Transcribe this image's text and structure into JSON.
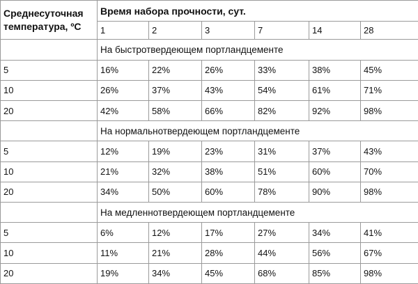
{
  "table": {
    "temp_header_line1": "Среднесуточная",
    "temp_header_line2": "температура, ºС",
    "time_header": "Время набора прочности, сут.",
    "days": [
      "1",
      "2",
      "3",
      "7",
      "14",
      "28"
    ],
    "sections": [
      {
        "title": "На быстротвердеющем портландцементе",
        "rows": [
          {
            "temp": "5",
            "values": [
              "16%",
              "22%",
              "26%",
              "33%",
              "38%",
              "45%"
            ]
          },
          {
            "temp": "10",
            "values": [
              "26%",
              "37%",
              "43%",
              "54%",
              "61%",
              "71%"
            ]
          },
          {
            "temp": "20",
            "values": [
              "42%",
              "58%",
              "66%",
              "82%",
              "92%",
              "98%"
            ]
          }
        ]
      },
      {
        "title": "На нормальнотвердеющем портландцементе",
        "rows": [
          {
            "temp": "5",
            "values": [
              "12%",
              "19%",
              "23%",
              "31%",
              "37%",
              "43%"
            ]
          },
          {
            "temp": "10",
            "values": [
              "21%",
              "32%",
              "38%",
              "51%",
              "60%",
              "70%"
            ]
          },
          {
            "temp": "20",
            "values": [
              "34%",
              "50%",
              "60%",
              "78%",
              "90%",
              "98%"
            ]
          }
        ]
      },
      {
        "title": "На медленнотвердеющем портландцементе",
        "rows": [
          {
            "temp": "5",
            "values": [
              "6%",
              "12%",
              "17%",
              "27%",
              "34%",
              "41%"
            ]
          },
          {
            "temp": "10",
            "values": [
              "11%",
              "21%",
              "28%",
              "44%",
              "56%",
              "67%"
            ]
          },
          {
            "temp": "20",
            "values": [
              "19%",
              "34%",
              "45%",
              "68%",
              "85%",
              "98%"
            ]
          }
        ]
      }
    ]
  }
}
